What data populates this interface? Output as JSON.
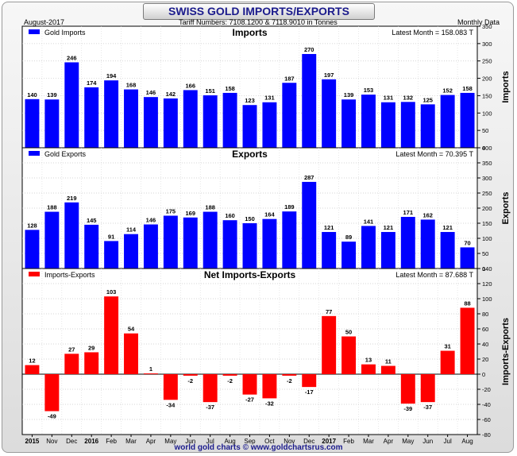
{
  "header": {
    "title": "SWISS GOLD IMPORTS/EXPORTS",
    "left": "August-2017",
    "center": "Tariff Numbers: 7108.1200 & 7118.9010 in Tonnes",
    "right": "Monthly Data"
  },
  "footer": "world gold charts © www.goldchartsrus.com",
  "colors": {
    "imports": "#0000ff",
    "exports": "#0000ff",
    "net": "#ff0000"
  },
  "chart_data": [
    {
      "type": "bar",
      "title": "Imports",
      "legend": "Gold Imports",
      "latest": "Latest Month = 158.083 T",
      "ylabel": "Imports",
      "ylim": [
        0,
        350
      ],
      "yticks": [
        0,
        50,
        100,
        150,
        200,
        250,
        300,
        350
      ],
      "categories": [
        "2015",
        "Nov",
        "Dec",
        "2016",
        "Feb",
        "Mar",
        "Apr",
        "May",
        "Jun",
        "Jul",
        "Aug",
        "Sep",
        "Oct",
        "Nov",
        "Dec",
        "2017",
        "Feb",
        "Mar",
        "Apr",
        "May",
        "Jun",
        "Jul",
        "Aug"
      ],
      "values": [
        140,
        139,
        246,
        174,
        194,
        168,
        146,
        142,
        166,
        151,
        158,
        123,
        131,
        187,
        270,
        197,
        139,
        153,
        131,
        132,
        125,
        152,
        158
      ]
    },
    {
      "type": "bar",
      "title": "Exports",
      "legend": "Gold Exports",
      "latest": "Latest Month = 70.395 T",
      "ylabel": "Exports",
      "ylim": [
        0,
        400
      ],
      "yticks": [
        0,
        50,
        100,
        150,
        200,
        250,
        300,
        350,
        400
      ],
      "categories": [
        "2015",
        "Nov",
        "Dec",
        "2016",
        "Feb",
        "Mar",
        "Apr",
        "May",
        "Jun",
        "Jul",
        "Aug",
        "Sep",
        "Oct",
        "Nov",
        "Dec",
        "2017",
        "Feb",
        "Mar",
        "Apr",
        "May",
        "Jun",
        "Jul",
        "Aug"
      ],
      "values": [
        128,
        188,
        219,
        145,
        91,
        114,
        146,
        175,
        169,
        188,
        160,
        150,
        164,
        189,
        287,
        121,
        89,
        141,
        121,
        171,
        162,
        121,
        70
      ]
    },
    {
      "type": "bar",
      "title": "Net Imports-Exports",
      "legend": "Imports-Exports",
      "latest": "Latest Month = 87.688 T",
      "ylabel": "Imports-Exports",
      "ylim": [
        -80,
        140
      ],
      "yticks": [
        -80,
        -60,
        -40,
        -20,
        0,
        20,
        40,
        60,
        80,
        100,
        120,
        140
      ],
      "categories": [
        "2015",
        "Nov",
        "Dec",
        "2016",
        "Feb",
        "Mar",
        "Apr",
        "May",
        "Jun",
        "Jul",
        "Aug",
        "Sep",
        "Oct",
        "Nov",
        "Dec",
        "2017",
        "Feb",
        "Mar",
        "Apr",
        "May",
        "Jun",
        "Jul",
        "Aug"
      ],
      "values": [
        12,
        -49,
        27,
        29,
        103,
        54,
        1,
        -34,
        -2,
        -37,
        -2,
        -27,
        -32,
        -2,
        -17,
        77,
        50,
        13,
        11,
        -39,
        -37,
        31,
        88
      ]
    }
  ]
}
